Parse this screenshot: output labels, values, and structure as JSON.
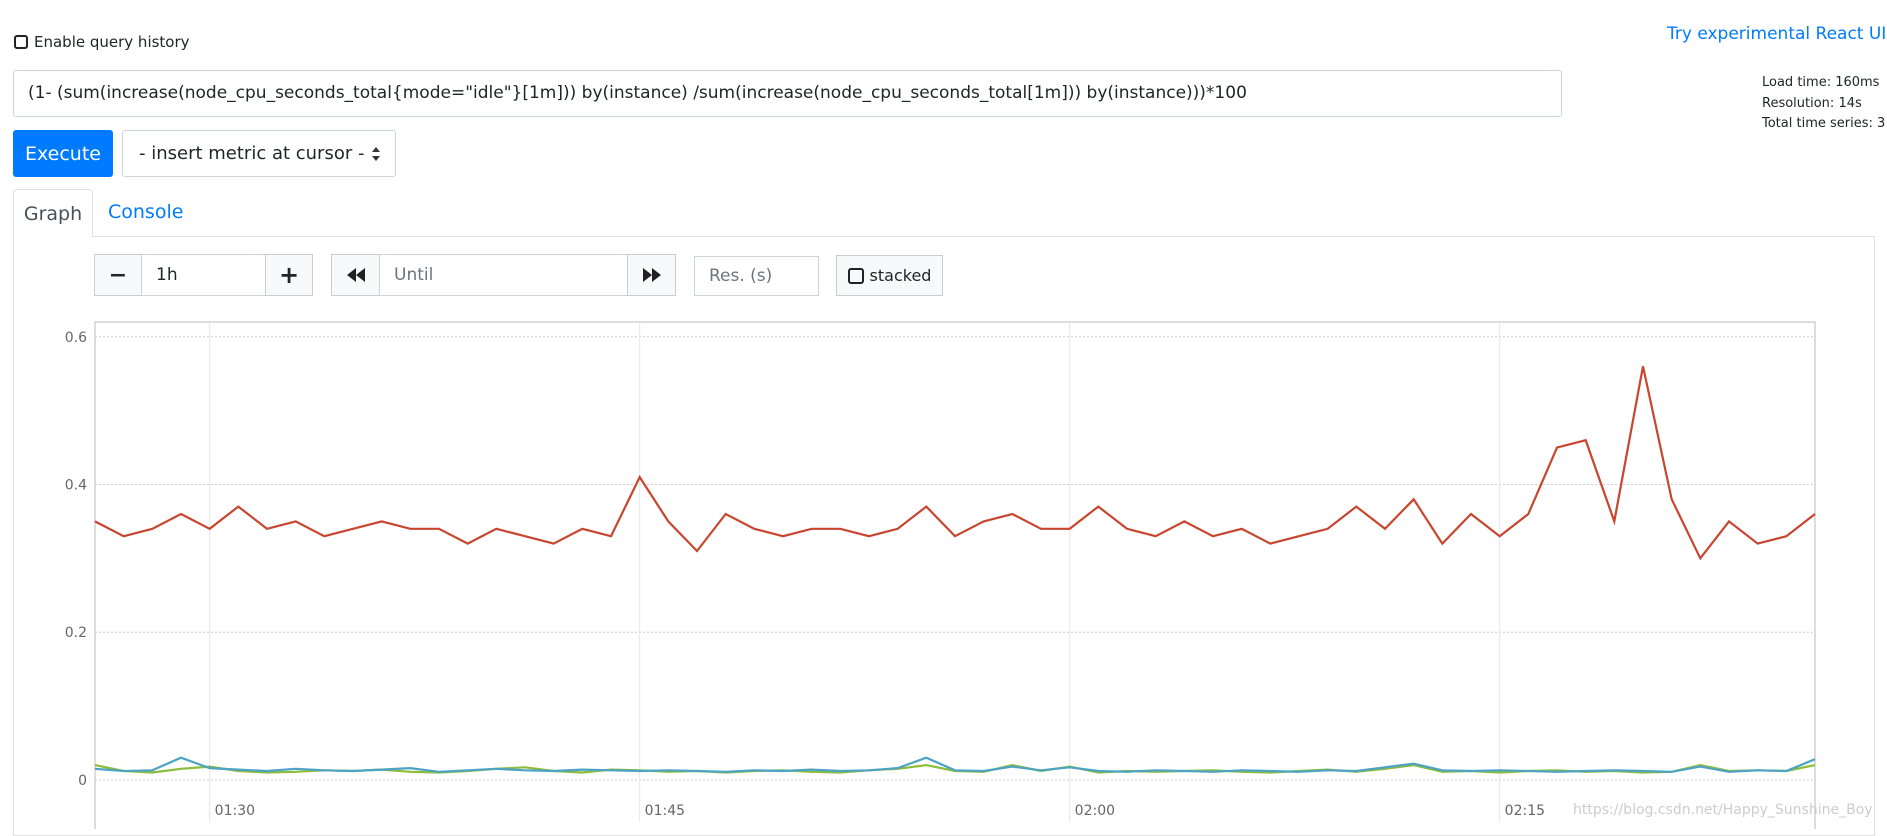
{
  "header": {
    "history_label": "Enable query history",
    "react_link": "Try experimental React UI"
  },
  "query": {
    "expression": "(1- (sum(increase(node_cpu_seconds_total{mode=\"idle\"}[1m])) by(instance) /sum(increase(node_cpu_seconds_total[1m])) by(instance)))*100",
    "stats": [
      "Load time: 160ms",
      "Resolution: 14s",
      "Total time series: 3"
    ],
    "execute": "Execute",
    "metric_select": "- insert metric at cursor -"
  },
  "tabs": [
    "Graph",
    "Console"
  ],
  "controls": {
    "minus": "−",
    "range": "1h",
    "plus": "+",
    "until": "Until",
    "resolution": "Res. (s)",
    "stacked": "stacked"
  },
  "watermark": "https://blog.csdn.net/Happy_Sunshine_Boy",
  "chart_data": {
    "type": "line",
    "x": [
      "01:26",
      "01:27",
      "01:28",
      "01:29",
      "01:30",
      "01:31",
      "01:32",
      "01:33",
      "01:34",
      "01:35",
      "01:36",
      "01:37",
      "01:38",
      "01:39",
      "01:40",
      "01:41",
      "01:42",
      "01:43",
      "01:44",
      "01:45",
      "01:46",
      "01:47",
      "01:48",
      "01:49",
      "01:50",
      "01:51",
      "01:52",
      "01:53",
      "01:54",
      "01:55",
      "01:56",
      "01:57",
      "01:58",
      "01:59",
      "02:00",
      "02:01",
      "02:02",
      "02:03",
      "02:04",
      "02:05",
      "02:06",
      "02:07",
      "02:08",
      "02:09",
      "02:10",
      "02:11",
      "02:12",
      "02:13",
      "02:14",
      "02:15",
      "02:16",
      "02:17",
      "02:18",
      "02:19",
      "02:20",
      "02:21",
      "02:22",
      "02:23",
      "02:24",
      "02:25",
      "02:26"
    ],
    "xlim": [
      "01:26",
      "02:26"
    ],
    "xticks": [
      "01:30",
      "01:45",
      "02:00",
      "02:15"
    ],
    "ylim": [
      -0.057,
      0.62
    ],
    "yticks": [
      0,
      0.2,
      0.4,
      0.6
    ],
    "grid": true,
    "series": [
      {
        "color": "#c8462f",
        "values": [
          0.35,
          0.33,
          0.34,
          0.36,
          0.34,
          0.37,
          0.34,
          0.35,
          0.33,
          0.34,
          0.35,
          0.34,
          0.34,
          0.32,
          0.34,
          0.33,
          0.32,
          0.34,
          0.33,
          0.41,
          0.35,
          0.31,
          0.36,
          0.34,
          0.33,
          0.34,
          0.34,
          0.33,
          0.34,
          0.37,
          0.33,
          0.35,
          0.36,
          0.34,
          0.34,
          0.37,
          0.34,
          0.33,
          0.35,
          0.33,
          0.34,
          0.32,
          0.33,
          0.34,
          0.37,
          0.34,
          0.38,
          0.32,
          0.36,
          0.33,
          0.36,
          0.45,
          0.46,
          0.35,
          0.56,
          0.38,
          0.3,
          0.35,
          0.32,
          0.33,
          0.36
        ]
      },
      {
        "color": "#8cbd3a",
        "values": [
          0.02,
          0.012,
          0.01,
          0.015,
          0.018,
          0.012,
          0.01,
          0.011,
          0.013,
          0.012,
          0.014,
          0.011,
          0.01,
          0.012,
          0.015,
          0.017,
          0.012,
          0.01,
          0.014,
          0.013,
          0.011,
          0.012,
          0.01,
          0.012,
          0.013,
          0.011,
          0.01,
          0.013,
          0.015,
          0.02,
          0.012,
          0.011,
          0.02,
          0.012,
          0.018,
          0.01,
          0.012,
          0.011,
          0.012,
          0.013,
          0.011,
          0.01,
          0.012,
          0.014,
          0.011,
          0.015,
          0.02,
          0.011,
          0.012,
          0.01,
          0.012,
          0.013,
          0.011,
          0.012,
          0.01,
          0.011,
          0.02,
          0.012,
          0.013,
          0.012,
          0.02
        ]
      },
      {
        "color": "#4ca3c4",
        "values": [
          0.015,
          0.012,
          0.013,
          0.03,
          0.016,
          0.014,
          0.012,
          0.015,
          0.013,
          0.012,
          0.014,
          0.016,
          0.011,
          0.013,
          0.015,
          0.013,
          0.012,
          0.014,
          0.013,
          0.012,
          0.013,
          0.012,
          0.011,
          0.013,
          0.012,
          0.014,
          0.012,
          0.013,
          0.016,
          0.03,
          0.013,
          0.012,
          0.018,
          0.013,
          0.017,
          0.012,
          0.011,
          0.013,
          0.012,
          0.011,
          0.013,
          0.012,
          0.011,
          0.013,
          0.012,
          0.017,
          0.022,
          0.013,
          0.012,
          0.013,
          0.012,
          0.011,
          0.012,
          0.013,
          0.012,
          0.011,
          0.018,
          0.011,
          0.013,
          0.012,
          0.028
        ]
      }
    ]
  }
}
